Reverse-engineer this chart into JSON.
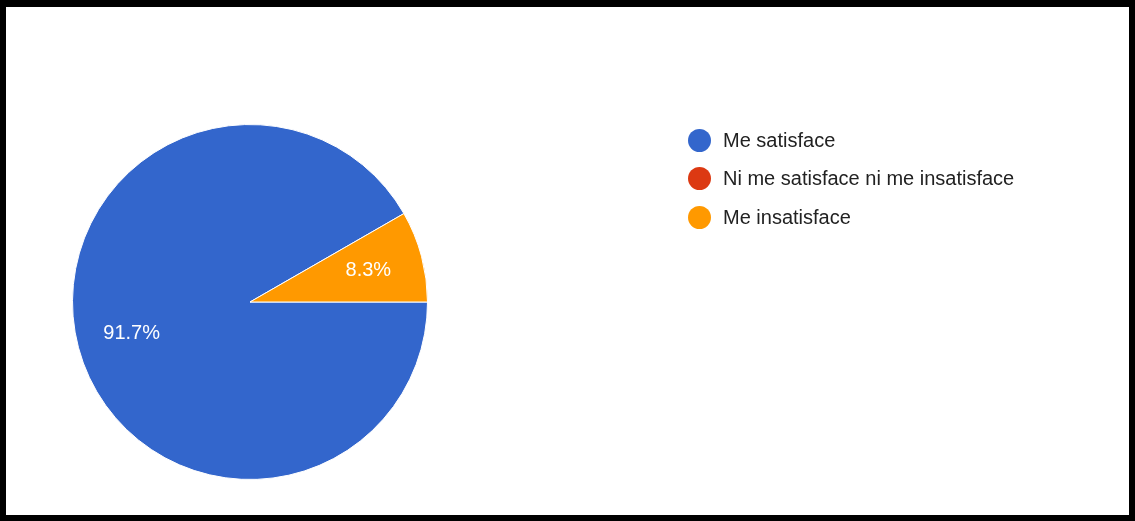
{
  "chart_data": {
    "type": "pie",
    "categories": [
      "Me satisface",
      "Ni me satisface ni me insatisface",
      "Me insatisface"
    ],
    "values": [
      91.7,
      0,
      8.3
    ],
    "colors": [
      "#3366cc",
      "#dc3912",
      "#ff9900"
    ],
    "value_labels": [
      "91.7%",
      null,
      "8.3%"
    ],
    "legend": "right"
  }
}
